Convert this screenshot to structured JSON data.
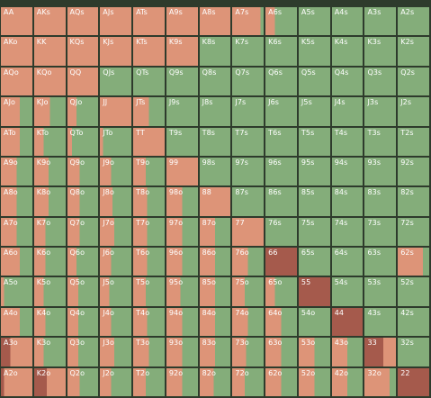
{
  "colors": {
    "call": "#84ad7a",
    "raise": "#dd9478",
    "allin": "#a55a4c",
    "border": "#2e3b2c"
  },
  "ranks": [
    "A",
    "K",
    "Q",
    "J",
    "T",
    "9",
    "8",
    "7",
    "6",
    "5",
    "4",
    "3",
    "2"
  ],
  "rows": [
    [
      {
        "hand": "AA",
        "raise": 1
      },
      {
        "hand": "AKs",
        "raise": 1
      },
      {
        "hand": "AQs",
        "raise": 1
      },
      {
        "hand": "AJs",
        "raise": 1
      },
      {
        "hand": "ATs",
        "raise": 1
      },
      {
        "hand": "A9s",
        "raise": 1
      },
      {
        "hand": "A8s",
        "raise": 1
      },
      {
        "hand": "A7s",
        "raise": 0.9
      },
      {
        "hand": "A6s",
        "raise": 0.3
      },
      {
        "hand": "A5s",
        "raise": 0
      },
      {
        "hand": "A4s",
        "raise": 0
      },
      {
        "hand": "A3s",
        "raise": 0
      },
      {
        "hand": "A2s",
        "raise": 0
      }
    ],
    [
      {
        "hand": "AKo",
        "raise": 1
      },
      {
        "hand": "KK",
        "raise": 1
      },
      {
        "hand": "KQs",
        "raise": 1
      },
      {
        "hand": "KJs",
        "raise": 1
      },
      {
        "hand": "KTs",
        "raise": 1
      },
      {
        "hand": "K9s",
        "raise": 1
      },
      {
        "hand": "K8s",
        "raise": 0
      },
      {
        "hand": "K7s",
        "raise": 0
      },
      {
        "hand": "K6s",
        "raise": 0
      },
      {
        "hand": "K5s",
        "raise": 0
      },
      {
        "hand": "K4s",
        "raise": 0
      },
      {
        "hand": "K3s",
        "raise": 0
      },
      {
        "hand": "K2s",
        "raise": 0
      }
    ],
    [
      {
        "hand": "AQo",
        "raise": 1
      },
      {
        "hand": "KQo",
        "raise": 1
      },
      {
        "hand": "QQ",
        "raise": 1
      },
      {
        "hand": "QJs",
        "raise": 0
      },
      {
        "hand": "QTs",
        "raise": 0
      },
      {
        "hand": "Q9s",
        "raise": 0
      },
      {
        "hand": "Q8s",
        "raise": 0
      },
      {
        "hand": "Q7s",
        "raise": 0
      },
      {
        "hand": "Q6s",
        "raise": 0
      },
      {
        "hand": "Q5s",
        "raise": 0
      },
      {
        "hand": "Q4s",
        "raise": 0
      },
      {
        "hand": "Q3s",
        "raise": 0
      },
      {
        "hand": "Q2s",
        "raise": 0
      }
    ],
    [
      {
        "hand": "AJo",
        "raise": 0.6
      },
      {
        "hand": "KJo",
        "raise": 0.5
      },
      {
        "hand": "QJo",
        "raise": 0.3
      },
      {
        "hand": "JJ",
        "raise": 1
      },
      {
        "hand": "JTs",
        "raise": 0.5
      },
      {
        "hand": "J9s",
        "raise": 0
      },
      {
        "hand": "J8s",
        "raise": 0
      },
      {
        "hand": "J7s",
        "raise": 0
      },
      {
        "hand": "J6s",
        "raise": 0
      },
      {
        "hand": "J5s",
        "raise": 0
      },
      {
        "hand": "J4s",
        "raise": 0
      },
      {
        "hand": "J3s",
        "raise": 0
      },
      {
        "hand": "J2s",
        "raise": 0
      }
    ],
    [
      {
        "hand": "ATo",
        "raise": 0.6
      },
      {
        "hand": "KTo",
        "raise": 0.3
      },
      {
        "hand": "QTo",
        "raise": 0.15
      },
      {
        "hand": "JTo",
        "raise": 0.1
      },
      {
        "hand": "TT",
        "raise": 1
      },
      {
        "hand": "T9s",
        "raise": 0
      },
      {
        "hand": "T8s",
        "raise": 0
      },
      {
        "hand": "T7s",
        "raise": 0
      },
      {
        "hand": "T6s",
        "raise": 0
      },
      {
        "hand": "T5s",
        "raise": 0
      },
      {
        "hand": "T4s",
        "raise": 0
      },
      {
        "hand": "T3s",
        "raise": 0
      },
      {
        "hand": "T2s",
        "raise": 0
      }
    ],
    [
      {
        "hand": "A9o",
        "raise": 0.5
      },
      {
        "hand": "K9o",
        "raise": 0.45
      },
      {
        "hand": "Q9o",
        "raise": 0.4
      },
      {
        "hand": "J9o",
        "raise": 0.35
      },
      {
        "hand": "T9o",
        "raise": 0.4
      },
      {
        "hand": "99",
        "raise": 1
      },
      {
        "hand": "98s",
        "raise": 0
      },
      {
        "hand": "97s",
        "raise": 0
      },
      {
        "hand": "96s",
        "raise": 0
      },
      {
        "hand": "95s",
        "raise": 0
      },
      {
        "hand": "94s",
        "raise": 0
      },
      {
        "hand": "93s",
        "raise": 0
      },
      {
        "hand": "92s",
        "raise": 0
      }
    ],
    [
      {
        "hand": "A8o",
        "raise": 0.5
      },
      {
        "hand": "K8o",
        "raise": 0.45
      },
      {
        "hand": "Q8o",
        "raise": 0.4
      },
      {
        "hand": "J8o",
        "raise": 0.4
      },
      {
        "hand": "T8o",
        "raise": 0.45
      },
      {
        "hand": "98o",
        "raise": 0.5
      },
      {
        "hand": "88",
        "raise": 1
      },
      {
        "hand": "87s",
        "raise": 0
      },
      {
        "hand": "86s",
        "raise": 0
      },
      {
        "hand": "85s",
        "raise": 0
      },
      {
        "hand": "84s",
        "raise": 0
      },
      {
        "hand": "83s",
        "raise": 0
      },
      {
        "hand": "82s",
        "raise": 0
      }
    ],
    [
      {
        "hand": "A7o",
        "raise": 0.5
      },
      {
        "hand": "K7o",
        "raise": 0.35
      },
      {
        "hand": "Q7o",
        "raise": 0.4
      },
      {
        "hand": "J7o",
        "raise": 0.45
      },
      {
        "hand": "T7o",
        "raise": 0.45
      },
      {
        "hand": "97o",
        "raise": 0.5
      },
      {
        "hand": "87o",
        "raise": 0.5
      },
      {
        "hand": "77",
        "raise": 1
      },
      {
        "hand": "76s",
        "raise": 0
      },
      {
        "hand": "75s",
        "raise": 0
      },
      {
        "hand": "74s",
        "raise": 0
      },
      {
        "hand": "73s",
        "raise": 0
      },
      {
        "hand": "72s",
        "raise": 0
      }
    ],
    [
      {
        "hand": "A6o",
        "raise": 0.6
      },
      {
        "hand": "K6o",
        "raise": 0.35
      },
      {
        "hand": "Q6o",
        "raise": 0.3
      },
      {
        "hand": "J6o",
        "raise": 0.35
      },
      {
        "hand": "T6o",
        "raise": 0.45
      },
      {
        "hand": "96o",
        "raise": 0.5
      },
      {
        "hand": "86o",
        "raise": 0.5
      },
      {
        "hand": "76o",
        "raise": 0.5
      },
      {
        "hand": "66",
        "raise": 1,
        "allin": 1
      },
      {
        "hand": "65s",
        "raise": 0
      },
      {
        "hand": "64s",
        "raise": 0
      },
      {
        "hand": "63s",
        "raise": 0
      },
      {
        "hand": "62s",
        "raise": 0.8
      }
    ],
    [
      {
        "hand": "A5o",
        "raise": 0.1
      },
      {
        "hand": "K5o",
        "raise": 0.3
      },
      {
        "hand": "Q5o",
        "raise": 0.35
      },
      {
        "hand": "J5o",
        "raise": 0.3
      },
      {
        "hand": "T5o",
        "raise": 0.4
      },
      {
        "hand": "95o",
        "raise": 0.45
      },
      {
        "hand": "85o",
        "raise": 0.5
      },
      {
        "hand": "75o",
        "raise": 0.4
      },
      {
        "hand": "65o",
        "raise": 0.3
      },
      {
        "hand": "55",
        "raise": 1,
        "allin": 1
      },
      {
        "hand": "54s",
        "raise": 0
      },
      {
        "hand": "53s",
        "raise": 0
      },
      {
        "hand": "52s",
        "raise": 0
      }
    ],
    [
      {
        "hand": "A4o",
        "raise": 0.6
      },
      {
        "hand": "K4o",
        "raise": 0.35
      },
      {
        "hand": "Q4o",
        "raise": 0.35
      },
      {
        "hand": "J4o",
        "raise": 0.35
      },
      {
        "hand": "T4o",
        "raise": 0.45
      },
      {
        "hand": "94o",
        "raise": 0.5
      },
      {
        "hand": "84o",
        "raise": 0.5
      },
      {
        "hand": "74o",
        "raise": 0.5
      },
      {
        "hand": "64o",
        "raise": 0.5
      },
      {
        "hand": "54o",
        "raise": 0
      },
      {
        "hand": "44",
        "raise": 1,
        "allin": 1
      },
      {
        "hand": "43s",
        "raise": 0
      },
      {
        "hand": "42s",
        "raise": 0
      }
    ],
    [
      {
        "hand": "A3o",
        "raise": 1,
        "allin": 0.3
      },
      {
        "hand": "K3o",
        "raise": 0.3
      },
      {
        "hand": "Q3o",
        "raise": 0.35
      },
      {
        "hand": "J3o",
        "raise": 0.45
      },
      {
        "hand": "T3o",
        "raise": 0.5
      },
      {
        "hand": "93o",
        "raise": 0.5
      },
      {
        "hand": "83o",
        "raise": 0.5
      },
      {
        "hand": "73o",
        "raise": 0.45
      },
      {
        "hand": "63o",
        "raise": 0.5
      },
      {
        "hand": "53o",
        "raise": 0.5
      },
      {
        "hand": "43o",
        "raise": 0.5
      },
      {
        "hand": "33",
        "raise": 1,
        "allin": 0.6
      },
      {
        "hand": "32s",
        "raise": 0
      }
    ],
    [
      {
        "hand": "A2o",
        "raise": 1,
        "allin": 0.1
      },
      {
        "hand": "K2o",
        "raise": 1,
        "allin": 0.4
      },
      {
        "hand": "Q2o",
        "raise": 0.4
      },
      {
        "hand": "J2o",
        "raise": 0.35
      },
      {
        "hand": "T2o",
        "raise": 0.4
      },
      {
        "hand": "92o",
        "raise": 0.5
      },
      {
        "hand": "82o",
        "raise": 0.45
      },
      {
        "hand": "72o",
        "raise": 0.4
      },
      {
        "hand": "62o",
        "raise": 0.5
      },
      {
        "hand": "52o",
        "raise": 0.5
      },
      {
        "hand": "42o",
        "raise": 0.5
      },
      {
        "hand": "32o",
        "raise": 0.8
      },
      {
        "hand": "22",
        "raise": 1,
        "allin": 1
      }
    ]
  ]
}
